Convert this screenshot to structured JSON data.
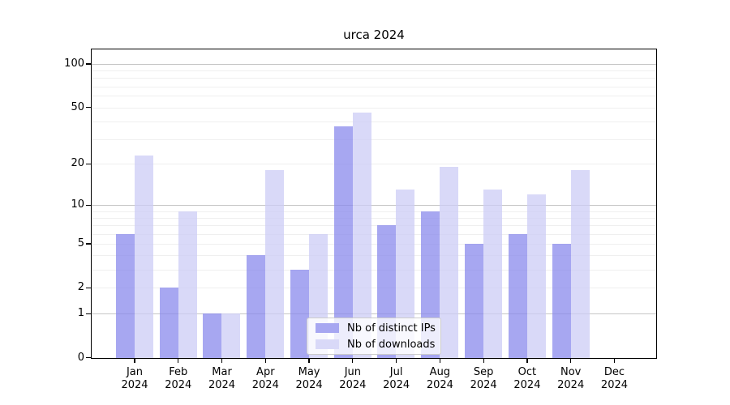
{
  "title": "urca 2024",
  "chart_data": {
    "type": "bar",
    "title": "urca 2024",
    "scale": "log1p",
    "grid": "on",
    "legend_position": "lower-center-inside",
    "x_year": "2024",
    "categories": [
      "Jan",
      "Feb",
      "Mar",
      "Apr",
      "May",
      "Jun",
      "Jul",
      "Aug",
      "Sep",
      "Oct",
      "Nov",
      "Dec"
    ],
    "series": [
      {
        "name": "Nb of distinct IPs",
        "color": "#a7a7f1",
        "values": [
          6,
          2,
          1,
          4,
          3,
          37,
          7,
          9,
          5,
          6,
          5,
          0
        ]
      },
      {
        "name": "Nb of downloads",
        "color": "#d9d9f8",
        "values": [
          23,
          9,
          1,
          18,
          6,
          46,
          13,
          19,
          13,
          12,
          18,
          0
        ]
      }
    ],
    "yticks": [
      0,
      1,
      2,
      5,
      10,
      20,
      50,
      100
    ],
    "ylim": [
      0,
      128
    ],
    "gridline_minor_values": [
      2,
      3,
      4,
      5,
      6,
      7,
      8,
      9,
      20,
      30,
      40,
      50,
      60,
      70,
      80,
      90
    ],
    "gridline_major_values": [
      1,
      10,
      100
    ],
    "gridline_minor_color": "#efefef",
    "gridline_major_color": "#c6c6c6",
    "spine_color": "#000000"
  }
}
